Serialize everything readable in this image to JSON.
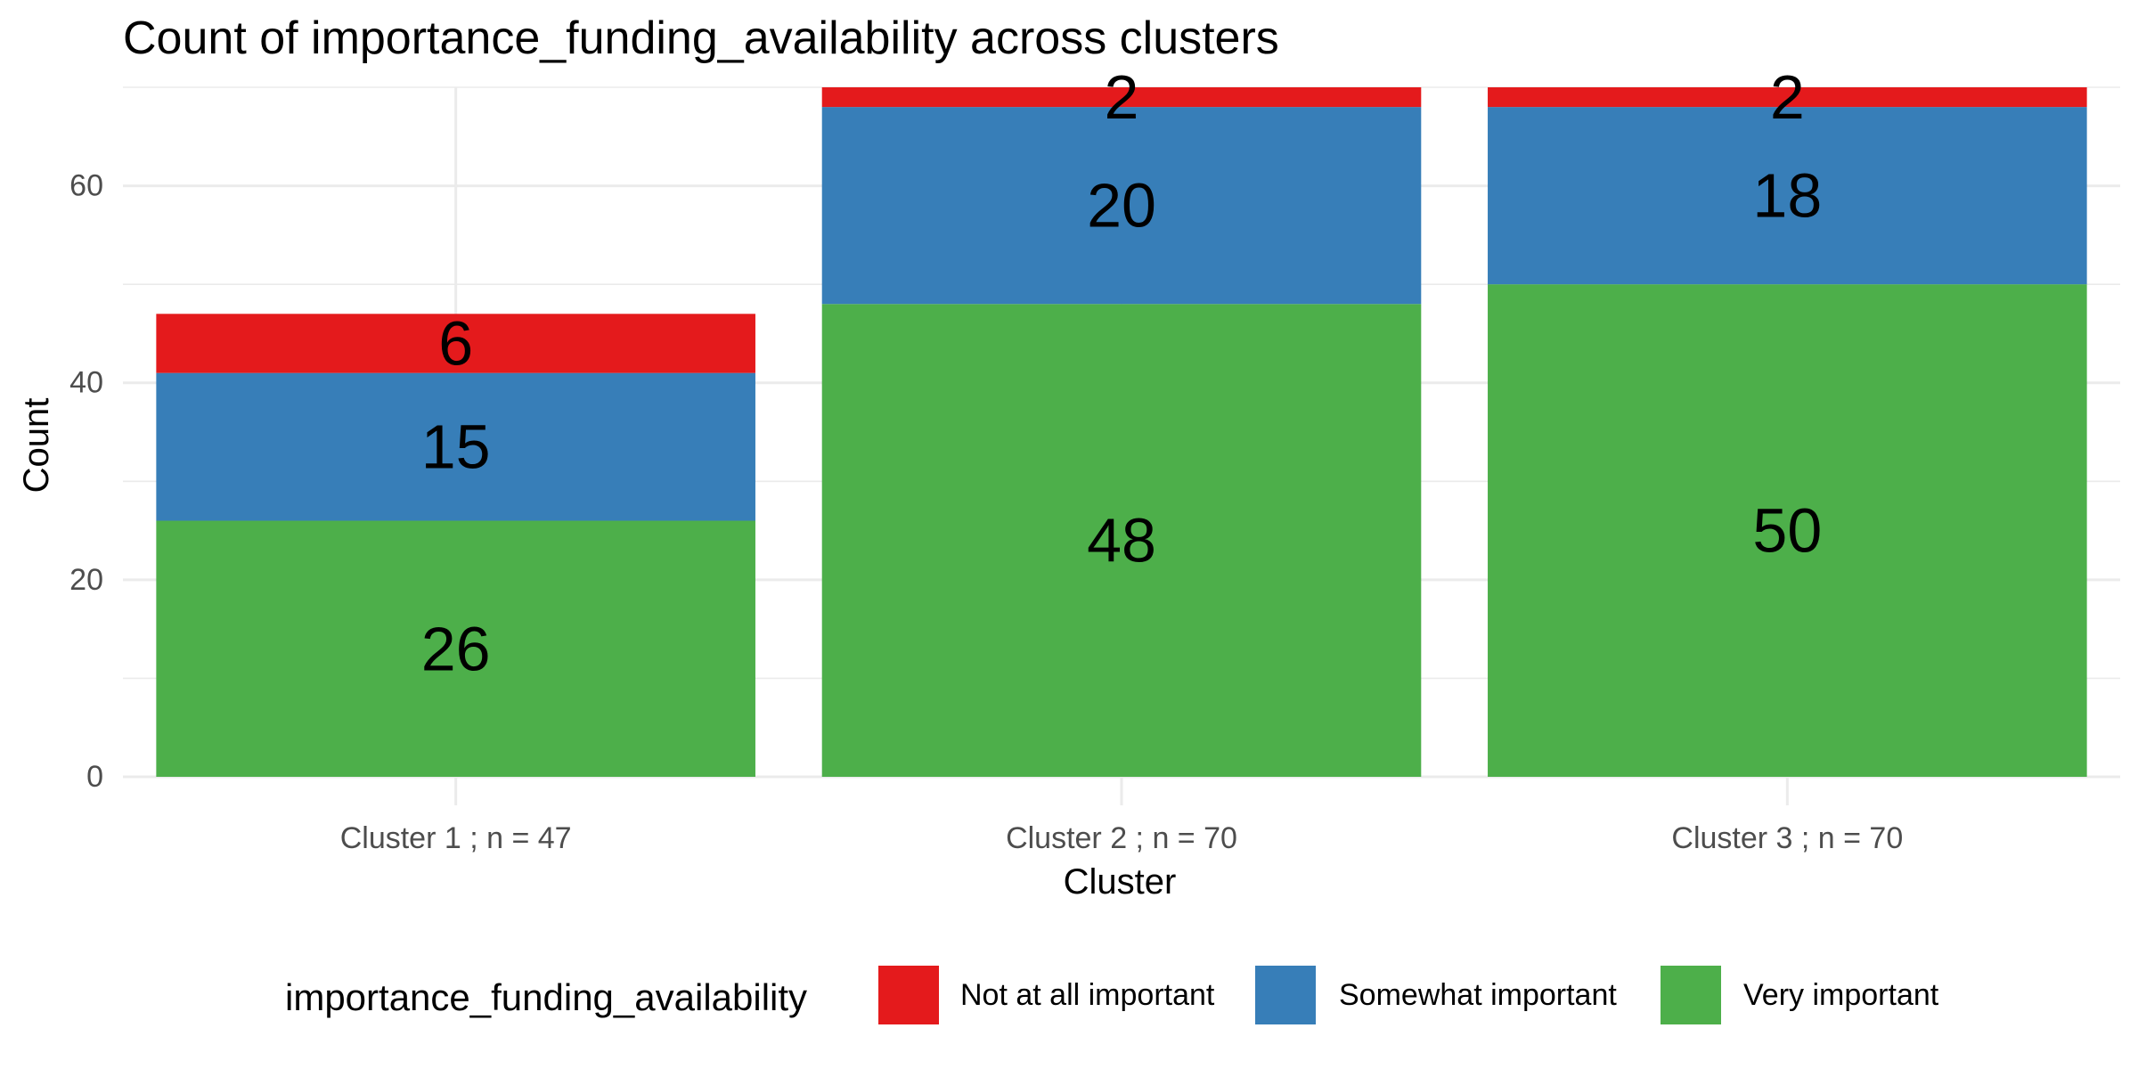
{
  "chart_data": {
    "type": "bar",
    "stacked": true,
    "title": "Count of importance_funding_availability across clusters",
    "xlabel": "Cluster",
    "ylabel": "Count",
    "ylim": [
      0,
      70
    ],
    "y_ticks": [
      0,
      20,
      40,
      60
    ],
    "grid": true,
    "categories": [
      "Cluster 1 ; n = 47",
      "Cluster 2 ; n = 70",
      "Cluster 3 ; n = 70"
    ],
    "series": [
      {
        "name": "Very important",
        "color": "#4daf4a",
        "values": [
          26,
          48,
          50
        ]
      },
      {
        "name": "Somewhat important",
        "color": "#377eb8",
        "values": [
          15,
          20,
          18
        ]
      },
      {
        "name": "Not at all important",
        "color": "#e41a1c",
        "values": [
          6,
          2,
          2
        ]
      }
    ],
    "legend": {
      "title": "importance_funding_availability",
      "position": "bottom",
      "order": [
        "Not at all important",
        "Somewhat important",
        "Very important"
      ]
    }
  }
}
